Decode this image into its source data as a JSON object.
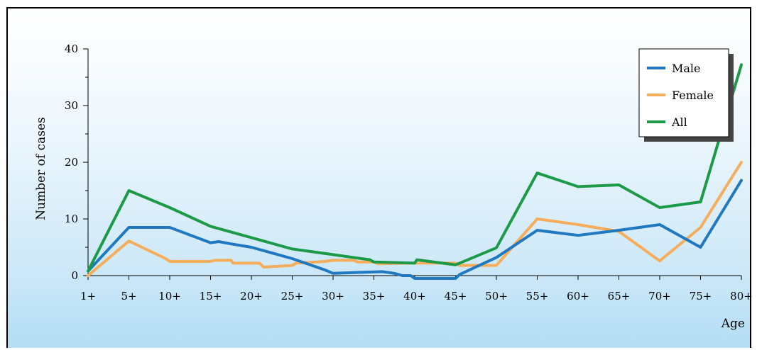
{
  "chart_data": {
    "type": "line",
    "title": "",
    "xlabel": "Age",
    "ylabel": "Number of cases",
    "categories": [
      "1+",
      "5+",
      "10+",
      "15+",
      "20+",
      "25+",
      "30+",
      "35+",
      "40+",
      "45+",
      "50+",
      "55+",
      "60+",
      "65+",
      "70+",
      "75+",
      "80+"
    ],
    "ylim": [
      0,
      40
    ],
    "yticks": [
      0,
      10,
      20,
      30,
      40
    ],
    "legend_position": "top-right",
    "grid": false,
    "series": [
      {
        "name": "Male",
        "color": "#1f78c0",
        "points": [
          [
            0,
            0.8
          ],
          [
            1,
            8.5
          ],
          [
            2,
            8.5
          ],
          [
            3,
            5.8
          ],
          [
            3.2,
            6
          ],
          [
            3.5,
            5.6
          ],
          [
            4,
            5
          ],
          [
            5,
            3
          ],
          [
            5.8,
            1
          ],
          [
            6,
            0.4
          ],
          [
            7.2,
            0.7
          ],
          [
            7.5,
            0.4
          ],
          [
            7.7,
            0
          ],
          [
            7.9,
            0
          ],
          [
            8,
            -0.5
          ],
          [
            9,
            -0.5
          ],
          [
            9.1,
            0.2
          ],
          [
            10,
            3.2
          ],
          [
            11,
            8
          ],
          [
            12,
            7.1
          ],
          [
            13,
            8
          ],
          [
            14,
            9
          ],
          [
            15,
            5
          ],
          [
            16,
            16.8
          ]
        ]
      },
      {
        "name": "Female",
        "color": "#f5ad5c",
        "points": [
          [
            0,
            0
          ],
          [
            1,
            6.1
          ],
          [
            1.9,
            3
          ],
          [
            2,
            2.5
          ],
          [
            3,
            2.5
          ],
          [
            3.1,
            2.7
          ],
          [
            3.5,
            2.7
          ],
          [
            3.55,
            2.2
          ],
          [
            4.2,
            2.2
          ],
          [
            4.3,
            1.5
          ],
          [
            5,
            1.8
          ],
          [
            5.1,
            2.2
          ],
          [
            5.8,
            2.5
          ],
          [
            6,
            2.7
          ],
          [
            6.5,
            2.7
          ],
          [
            6.6,
            2.4
          ],
          [
            7,
            2.4
          ],
          [
            7.1,
            2.1
          ],
          [
            8,
            2.2
          ],
          [
            8.5,
            2.2
          ],
          [
            9,
            2.2
          ],
          [
            9.1,
            1.8
          ],
          [
            10,
            1.8
          ],
          [
            11,
            10
          ],
          [
            12,
            9
          ],
          [
            13,
            7.8
          ],
          [
            14,
            2.6
          ],
          [
            15,
            8.5
          ],
          [
            16,
            20
          ]
        ]
      },
      {
        "name": "All",
        "color": "#1c9a48",
        "points": [
          [
            0,
            0.8
          ],
          [
            1,
            15
          ],
          [
            2,
            12
          ],
          [
            3,
            8.7
          ],
          [
            4,
            6.7
          ],
          [
            5,
            4.7
          ],
          [
            6,
            3.7
          ],
          [
            6.9,
            2.8
          ],
          [
            7,
            2.4
          ],
          [
            8,
            2.2
          ],
          [
            8.05,
            2.8
          ],
          [
            9,
            1.9
          ],
          [
            10,
            4.9
          ],
          [
            11,
            18.1
          ],
          [
            12,
            15.7
          ],
          [
            13,
            16
          ],
          [
            14,
            12
          ],
          [
            15,
            13
          ],
          [
            16,
            37.2
          ]
        ]
      }
    ]
  }
}
